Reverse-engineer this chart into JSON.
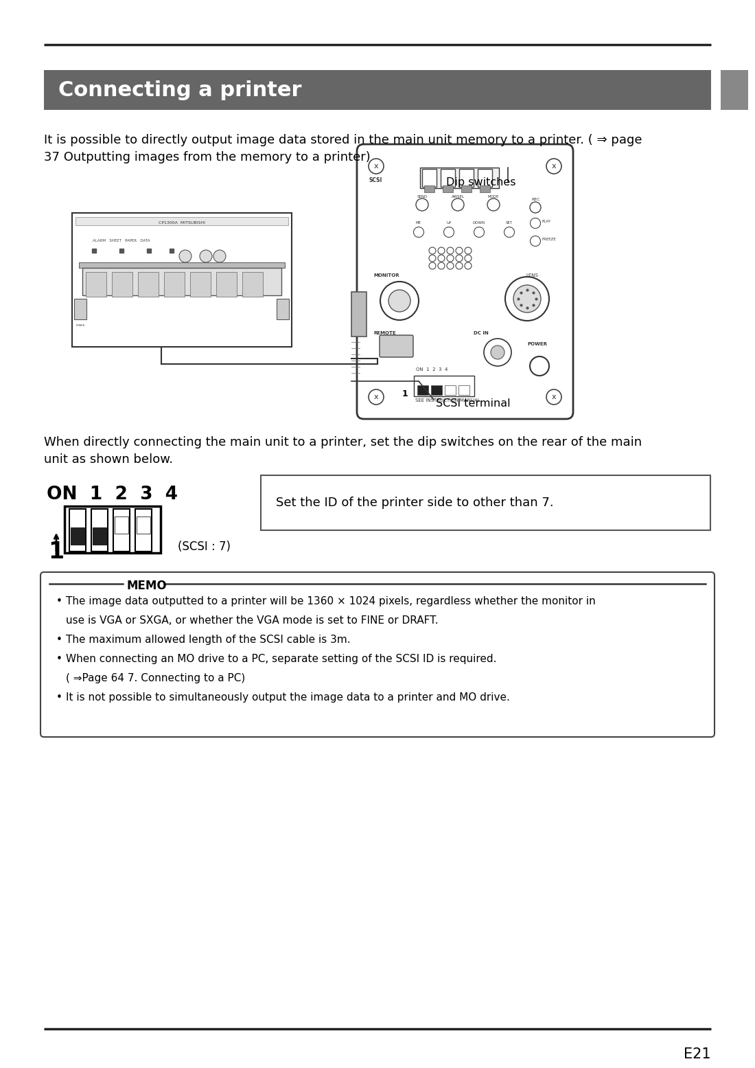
{
  "title": "Connecting a printer",
  "title_bg_color": "#666666",
  "title_text_color": "#ffffff",
  "page_bg_color": "#ffffff",
  "top_line_color": "#222222",
  "bottom_line_color": "#222222",
  "page_number": "E21",
  "dip_label": "Dip switches",
  "scsi_label": "SCSI terminal",
  "scsi_caption": "(SCSI : 7)",
  "switch_caption": "Set the ID of the printer side to other than 7.",
  "memo_title": "MEMO"
}
